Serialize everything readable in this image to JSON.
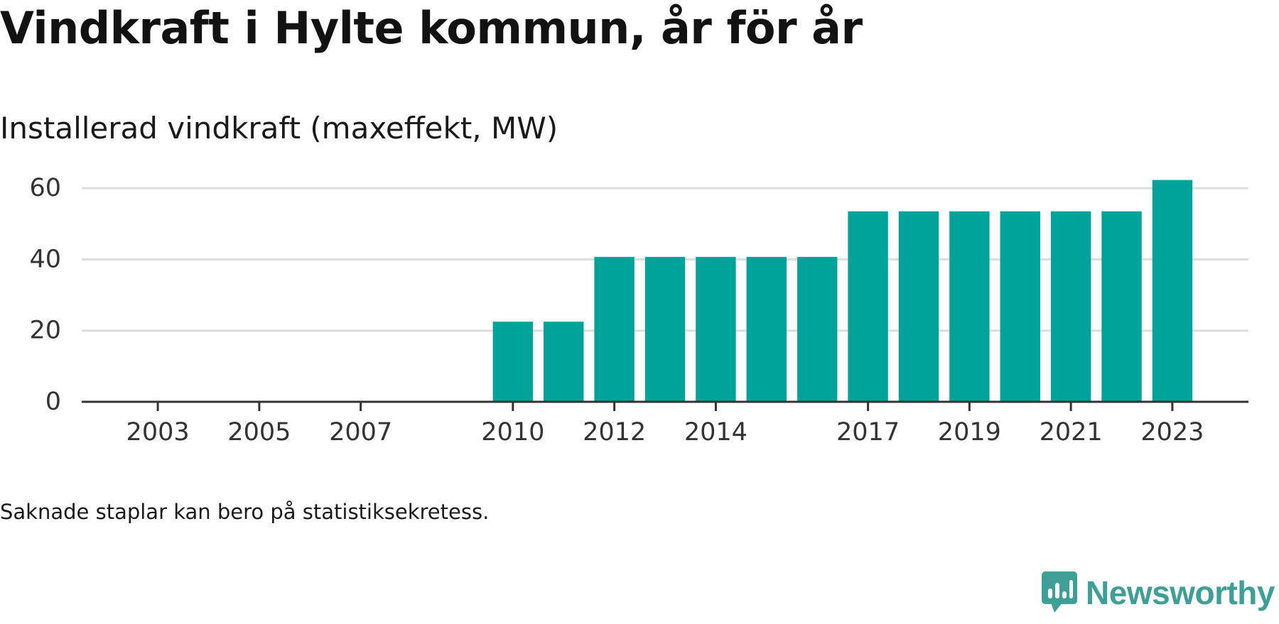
{
  "header": {
    "title": "Vindkraft i Hylte kommun, år för år",
    "subtitle": "Installerad vindkraft (maxeffekt, MW)"
  },
  "footer": {
    "note": "Saknade staplar kan bero på statistiksekretess.",
    "brand": "Newsworthy"
  },
  "colors": {
    "bar": "#00a39a",
    "grid": "#dddddd",
    "axis": "#333333",
    "brand": "#3d9f95"
  },
  "chart_data": {
    "type": "bar",
    "title": "Vindkraft i Hylte kommun, år för år",
    "subtitle": "Installerad vindkraft (maxeffekt, MW)",
    "xlabel": "",
    "ylabel": "",
    "ylim": [
      0,
      65
    ],
    "yticks": [
      0,
      20,
      40,
      60
    ],
    "grid": true,
    "xlim": [
      2001.5,
      2024.5
    ],
    "xticks": [
      "2003",
      "2005",
      "2007",
      "2010",
      "2012",
      "2014",
      "2017",
      "2019",
      "2021",
      "2023"
    ],
    "categories": [
      "2010",
      "2011",
      "2012",
      "2013",
      "2014",
      "2015",
      "2016",
      "2017",
      "2018",
      "2019",
      "2020",
      "2021",
      "2022",
      "2023"
    ],
    "values": [
      22.5,
      22.5,
      40.7,
      40.7,
      40.7,
      40.7,
      40.7,
      53.5,
      53.5,
      53.5,
      53.5,
      53.5,
      53.5,
      62.3
    ]
  }
}
